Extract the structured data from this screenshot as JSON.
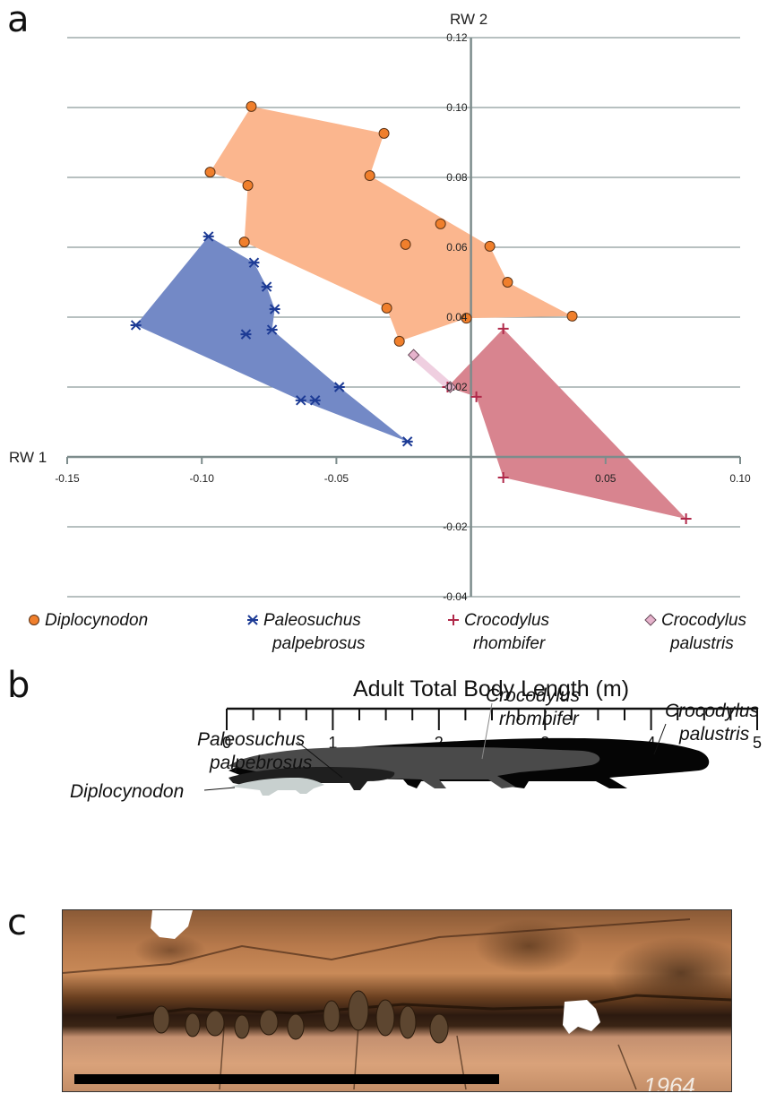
{
  "panels": {
    "a": "a",
    "b": "b",
    "c": "c"
  },
  "chart_data": [
    {
      "type": "scatter",
      "title": "",
      "xlabel": "RW 1",
      "ylabel": "RW 2",
      "xlim": [
        -0.15,
        0.1
      ],
      "ylim": [
        -0.04,
        0.12
      ],
      "x_ticks": [
        "-0.15",
        "-0.10",
        "-0.05",
        "0.05",
        "0.10"
      ],
      "y_ticks": [
        "0.12",
        "0.10",
        "0.08",
        "0.06",
        "0.04",
        "0.02",
        "-0.02",
        "-0.04"
      ],
      "grid": "horizontal",
      "legend_position": "bottom",
      "series": [
        {
          "name": "Diplocynodon",
          "marker": "circle",
          "color": "#f07f2c",
          "hull_color": "#fbb68e",
          "points": [
            [
              -0.0816,
              0.1003
            ],
            [
              -0.0323,
              0.0926
            ],
            [
              -0.0969,
              0.0815
            ],
            [
              -0.0376,
              0.0805
            ],
            [
              -0.0829,
              0.0777
            ],
            [
              -0.0113,
              0.0667
            ],
            [
              -0.0842,
              0.0615
            ],
            [
              -0.0243,
              0.0608
            ],
            [
              0.007,
              0.0603
            ],
            [
              0.0136,
              0.05
            ],
            [
              -0.0313,
              0.0426
            ],
            [
              -0.0017,
              0.0397
            ],
            [
              0.0376,
              0.0403
            ],
            [
              -0.0266,
              0.0331
            ]
          ],
          "hull": [
            [
              -0.0816,
              0.1003
            ],
            [
              -0.0323,
              0.0926
            ],
            [
              -0.0376,
              0.0805
            ],
            [
              0.007,
              0.0603
            ],
            [
              0.0136,
              0.05
            ],
            [
              0.0376,
              0.0403
            ],
            [
              -0.0017,
              0.0397
            ],
            [
              -0.0266,
              0.0331
            ],
            [
              -0.0313,
              0.0426
            ],
            [
              -0.0842,
              0.0615
            ],
            [
              -0.0829,
              0.0777
            ],
            [
              -0.0969,
              0.0815
            ]
          ]
        },
        {
          "name": "Paleosuchus palpebrosus",
          "marker": "asterisk",
          "color": "#1d3b95",
          "hull_color": "#7389c6",
          "points": [
            [
              -0.0975,
              0.0631
            ],
            [
              -0.0806,
              0.0556
            ],
            [
              -0.0759,
              0.0487
            ],
            [
              -0.0729,
              0.0423
            ],
            [
              -0.1245,
              0.0377
            ],
            [
              -0.0836,
              0.0351
            ],
            [
              -0.0739,
              0.0364
            ],
            [
              -0.0489,
              0.02
            ],
            [
              -0.0632,
              0.0162
            ],
            [
              -0.0579,
              0.0162
            ],
            [
              -0.0236,
              0.0044
            ]
          ],
          "hull": [
            [
              -0.0975,
              0.0631
            ],
            [
              -0.0806,
              0.0556
            ],
            [
              -0.0759,
              0.0487
            ],
            [
              -0.0729,
              0.0423
            ],
            [
              -0.0739,
              0.0364
            ],
            [
              -0.0489,
              0.02
            ],
            [
              -0.0236,
              0.0044
            ],
            [
              -0.0632,
              0.0162
            ],
            [
              -0.1245,
              0.0377
            ]
          ]
        },
        {
          "name": "Crocodylus rhombifer",
          "marker": "plus",
          "color": "#b0294a",
          "hull_color": "#d8848f",
          "points": [
            [
              0.012,
              0.0367
            ],
            [
              -0.0087,
              0.02
            ],
            [
              0.002,
              0.0172
            ],
            [
              0.012,
              -0.0059
            ],
            [
              0.0799,
              -0.0177
            ]
          ],
          "hull": [
            [
              0.012,
              0.0367
            ],
            [
              0.0799,
              -0.0177
            ],
            [
              0.012,
              -0.0059
            ],
            [
              0.002,
              0.0172
            ],
            [
              -0.0087,
              0.02
            ]
          ]
        },
        {
          "name": "Crocodylus palustris",
          "marker": "diamond",
          "color": "#e6b3cc",
          "hull_color": "#efcfe0",
          "points": [
            [
              -0.0213,
              0.0292
            ],
            [
              -0.0077,
              0.02
            ]
          ]
        }
      ],
      "legend": [
        {
          "line1": "Diplocynodon",
          "line2": ""
        },
        {
          "line1": "Paleosuchus",
          "line2": "palpebrosus"
        },
        {
          "line1": "Crocodylus",
          "line2": "rhombifer"
        },
        {
          "line1": "Crocodylus",
          "line2": "palustris"
        }
      ]
    },
    {
      "type": "scale",
      "title": "Adult Total Body Length (m)",
      "ticks": [
        "0",
        "1",
        "2",
        "3",
        "4",
        "5"
      ],
      "minor_step": 0.25,
      "range": [
        0,
        5
      ],
      "silhouettes": [
        {
          "name": "Diplocynodon",
          "length_m": 1.6,
          "color": "#c8d0cf"
        },
        {
          "name": "Paleosuchus palpebrosus",
          "length_m": 1.6,
          "color": "#1f1f1f"
        },
        {
          "name": "Crocodylus rhombifer",
          "length_m": 3.6,
          "color": "#4a4a4a"
        },
        {
          "name": "Crocodylus palustris",
          "length_m": 4.5,
          "color": "#050505"
        }
      ],
      "labels": {
        "diplocynodon": "Diplocynodon",
        "paleosuchus_1": "Paleosuchus",
        "paleosuchus_2": "palpebrosus",
        "rhombifer_1": "Crocodylus",
        "rhombifer_2": "rhombifer",
        "palustris_1": "Crocodylus",
        "palustris_2": "palustris"
      }
    }
  ],
  "photo": {
    "description": "Fossil jaw photograph with teeth and scale bar",
    "specimen_text": "1964",
    "scale_bar_color": "#000000"
  }
}
